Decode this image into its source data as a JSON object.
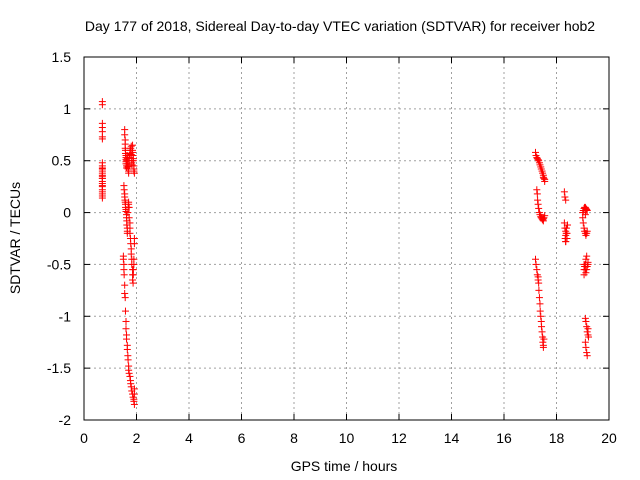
{
  "chart_data": {
    "type": "scatter",
    "title": "Day 177 of 2018, Sidereal Day-to-day VTEC variation (SDTVAR) for receiver hob2",
    "xlabel": "GPS time / hours",
    "ylabel": "SDTVAR / TECUs",
    "xlim": [
      0,
      20
    ],
    "ylim": [
      -2,
      1.5
    ],
    "xticks": [
      0,
      2,
      4,
      6,
      8,
      10,
      12,
      14,
      16,
      18,
      20
    ],
    "xtick_labels": [
      "0",
      "2",
      "4",
      "6",
      "8",
      "10",
      "12",
      "14",
      "16",
      "18",
      "20"
    ],
    "yticks": [
      -2,
      -1.5,
      -1,
      -0.5,
      0,
      0.5,
      1,
      1.5
    ],
    "ytick_labels": [
      "-2",
      "-1.5",
      "-1",
      "-0.5",
      "0",
      "0.5",
      "1",
      "1.5"
    ],
    "grid": true,
    "marker": "+",
    "marker_color": "#ff0000",
    "series": [
      {
        "name": "SDTVAR",
        "x": [
          0.7,
          0.7,
          0.7,
          0.7,
          0.7,
          0.7,
          0.7,
          0.7,
          0.7,
          0.7,
          0.7,
          0.7,
          0.7,
          0.7,
          0.7,
          0.7,
          0.7,
          0.7,
          0.7,
          0.7,
          0.7,
          0.7,
          0.7,
          0.7,
          0.7,
          0.7,
          1.55,
          1.55,
          1.57,
          1.57,
          1.57,
          1.58,
          1.58,
          1.6,
          1.6,
          1.6,
          1.6,
          1.6,
          1.62,
          1.62,
          1.63,
          1.65,
          1.65,
          1.65,
          1.67,
          1.68,
          1.68,
          1.7,
          1.7,
          1.72,
          1.72,
          1.72,
          1.75,
          1.75,
          1.78,
          1.8,
          1.8,
          1.82,
          1.82,
          1.83,
          1.85,
          1.85,
          1.85,
          1.87,
          1.88,
          1.88,
          1.9,
          1.9,
          1.9,
          1.92,
          1.52,
          1.53,
          1.55,
          1.55,
          1.56,
          1.57,
          1.58,
          1.58,
          1.6,
          1.6,
          1.62,
          1.62,
          1.63,
          1.63,
          1.65,
          1.65,
          1.65,
          1.67,
          1.68,
          1.7,
          1.7,
          1.72,
          1.72,
          1.75,
          1.75,
          1.75,
          1.77,
          1.78,
          1.8,
          1.8,
          1.82,
          1.82,
          1.85,
          1.85,
          1.85,
          1.87,
          1.88,
          1.88,
          1.9,
          1.9,
          1.92,
          1.92,
          1.5,
          1.5,
          1.52,
          1.52,
          1.53,
          1.55,
          1.55,
          1.57,
          1.58,
          1.6,
          1.6,
          1.62,
          1.62,
          1.65,
          1.65,
          1.67,
          1.68,
          1.7,
          1.7,
          1.72,
          1.75,
          1.77,
          1.78,
          1.8,
          1.82,
          1.85,
          1.87,
          1.9,
          1.9,
          1.92,
          1.92,
          1.92,
          17.2,
          17.22,
          17.25,
          17.27,
          17.3,
          17.32,
          17.35,
          17.37,
          17.4,
          17.42,
          17.45,
          17.47,
          17.5,
          17.5,
          17.52,
          17.55,
          17.55,
          17.25,
          17.27,
          17.28,
          17.3,
          17.32,
          17.35,
          17.37,
          17.4,
          17.42,
          17.45,
          17.47,
          17.5,
          17.5,
          17.52,
          17.55,
          17.2,
          17.22,
          17.25,
          17.27,
          17.3,
          17.3,
          17.32,
          17.33,
          17.35,
          17.37,
          17.38,
          17.4,
          17.42,
          17.43,
          17.45,
          17.47,
          17.48,
          17.5,
          17.5,
          17.52,
          18.3,
          18.32,
          18.35,
          18.3,
          18.32,
          18.35,
          18.37,
          18.35,
          18.33,
          18.35,
          18.4,
          18.4,
          18.38,
          18.42,
          18.35,
          19.0,
          19.02,
          19.05,
          19.07,
          19.1,
          19.12,
          19.15,
          19.17,
          19.0,
          19.02,
          19.05,
          19.07,
          19.1,
          19.12,
          19.15,
          19.17,
          19.05,
          19.07,
          19.1,
          19.12,
          19.15,
          19.17,
          19.2,
          19.2,
          19.05,
          19.05,
          19.1,
          19.12,
          19.15,
          19.17,
          19.2,
          19.22,
          19.1,
          19.12,
          19.15,
          19.17,
          19.2,
          19.1,
          19.12,
          19.15,
          19.1,
          19.12
        ],
        "y": [
          1.07,
          1.04,
          0.86,
          0.82,
          0.78,
          0.73,
          0.71,
          0.48,
          0.45,
          0.43,
          0.42,
          0.4,
          0.38,
          0.35,
          0.33,
          0.3,
          0.28,
          0.26,
          0.25,
          0.22,
          0.2,
          0.18,
          0.16,
          0.14,
          0.36,
          0.33,
          0.8,
          0.75,
          0.7,
          0.66,
          0.62,
          0.6,
          0.57,
          0.55,
          0.53,
          0.51,
          0.49,
          0.47,
          0.45,
          0.43,
          0.5,
          0.52,
          0.55,
          0.47,
          0.45,
          0.44,
          0.42,
          0.4,
          0.38,
          0.5,
          0.53,
          0.55,
          0.57,
          0.6,
          0.62,
          0.64,
          0.56,
          0.5,
          0.48,
          0.46,
          0.65,
          0.6,
          0.58,
          0.55,
          0.52,
          0.5,
          0.45,
          0.42,
          0.4,
          0.38,
          0.26,
          0.22,
          0.18,
          0.15,
          0.12,
          0.1,
          0.08,
          0.05,
          0.03,
          0.01,
          -0.02,
          -0.05,
          -0.08,
          -0.12,
          -0.15,
          -0.18,
          -0.2,
          0.0,
          0.05,
          0.08,
          0.1,
          0.05,
          -0.05,
          -0.1,
          -0.15,
          -0.2,
          -0.25,
          -0.3,
          -0.35,
          -0.4,
          -0.45,
          -0.5,
          -0.55,
          -0.6,
          -0.65,
          -0.68,
          -0.6,
          -0.55,
          -0.5,
          -0.45,
          -0.3,
          -0.25,
          -0.42,
          -0.45,
          -0.5,
          -0.55,
          -0.6,
          -0.7,
          -0.78,
          -0.82,
          -0.95,
          -1.05,
          -1.12,
          -1.18,
          -1.22,
          -1.28,
          -1.32,
          -1.38,
          -1.42,
          -1.48,
          -1.52,
          -1.55,
          -1.58,
          -1.62,
          -1.65,
          -1.68,
          -1.72,
          -1.75,
          -1.78,
          -1.8,
          -1.82,
          -1.85,
          -1.75,
          -1.7,
          0.58,
          0.55,
          0.53,
          0.52,
          0.51,
          0.5,
          0.48,
          0.46,
          0.44,
          0.42,
          0.4,
          0.38,
          0.36,
          0.34,
          0.33,
          0.32,
          0.3,
          0.22,
          0.18,
          0.12,
          0.08,
          0.04,
          0.0,
          -0.02,
          -0.04,
          -0.05,
          -0.06,
          -0.07,
          -0.08,
          -0.06,
          -0.05,
          -0.03,
          -0.45,
          -0.5,
          -0.55,
          -0.6,
          -0.62,
          -0.65,
          -0.68,
          -0.75,
          -0.82,
          -0.88,
          -0.95,
          -1.0,
          -1.05,
          -1.1,
          -1.15,
          -1.2,
          -1.25,
          -1.28,
          -1.3,
          -1.22,
          0.2,
          0.15,
          0.12,
          -0.1,
          -0.15,
          -0.18,
          -0.2,
          -0.22,
          -0.25,
          -0.28,
          -0.25,
          -0.2,
          -0.15,
          -0.12,
          -0.28,
          0.0,
          0.02,
          0.04,
          0.05,
          0.05,
          0.04,
          0.03,
          0.02,
          -0.05,
          -0.1,
          -0.15,
          -0.18,
          -0.2,
          -0.22,
          -0.2,
          -0.18,
          -0.5,
          -0.52,
          -0.55,
          -0.58,
          -0.55,
          -0.52,
          -0.5,
          -0.48,
          -0.55,
          -0.6,
          -1.02,
          -1.05,
          -1.1,
          -1.15,
          -1.18,
          -1.2,
          -1.25,
          -1.3,
          -1.35,
          -1.38,
          -1.12,
          -0.5,
          -0.45,
          -0.42,
          -0.02,
          0.02
        ]
      }
    ]
  }
}
